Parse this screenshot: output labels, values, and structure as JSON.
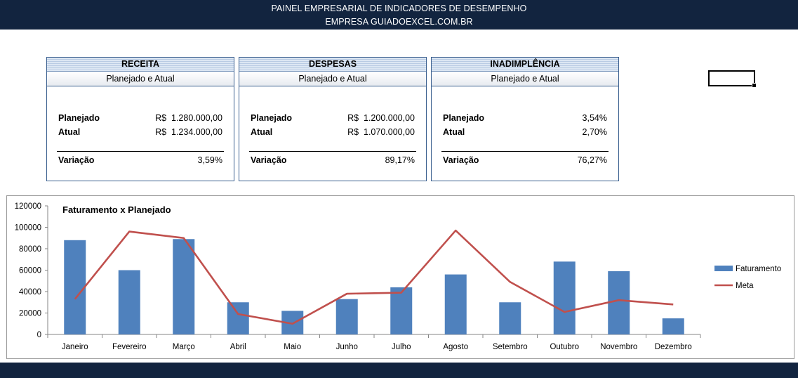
{
  "header": {
    "title": "PAINEL EMPRESARIAL DE INDICADORES DE DESEMPENHO",
    "subtitle": "EMPRESA GUIADOEXCEL.COM.BR"
  },
  "cards": [
    {
      "title": "RECEITA",
      "subtitle": "Planejado e Atual",
      "planned_label": "Planejado",
      "planned_value": "R$  1.280.000,00",
      "actual_label": "Atual",
      "actual_value": "R$  1.234.000,00",
      "variation_label": "Variação",
      "variation_value": "3,59%"
    },
    {
      "title": "DESPESAS",
      "subtitle": "Planejado e Atual",
      "planned_label": "Planejado",
      "planned_value": "R$  1.200.000,00",
      "actual_label": "Atual",
      "actual_value": "R$  1.070.000,00",
      "variation_label": "Variação",
      "variation_value": "89,17%"
    },
    {
      "title": "INADIMPLÊNCIA",
      "subtitle": "Planejado e Atual",
      "planned_label": "Planejado",
      "planned_value": "3,54%",
      "actual_label": "Atual",
      "actual_value": "2,70%",
      "variation_label": "Variação",
      "variation_value": "76,27%"
    }
  ],
  "chart_data": {
    "type": "bar",
    "title": "Faturamento x Planejado",
    "categories": [
      "Janeiro",
      "Fevereiro",
      "Março",
      "Abril",
      "Maio",
      "Junho",
      "Julho",
      "Agosto",
      "Setembro",
      "Outubro",
      "Novembro",
      "Dezembro"
    ],
    "series": [
      {
        "name": "Faturamento",
        "type": "bar",
        "color": "#4f81bd",
        "values": [
          88000,
          60000,
          89000,
          30000,
          22000,
          33000,
          44000,
          56000,
          30000,
          68000,
          59000,
          15000
        ]
      },
      {
        "name": "Meta",
        "type": "line",
        "color": "#c0504d",
        "values": [
          33000,
          96000,
          90000,
          19000,
          10000,
          38000,
          39000,
          97000,
          49000,
          21000,
          32000,
          28000
        ]
      }
    ],
    "ylim": [
      0,
      120000
    ],
    "yticks": [
      "0",
      "20000",
      "40000",
      "60000",
      "80000",
      "100000",
      "120000"
    ],
    "legend": "right",
    "grid": false
  }
}
